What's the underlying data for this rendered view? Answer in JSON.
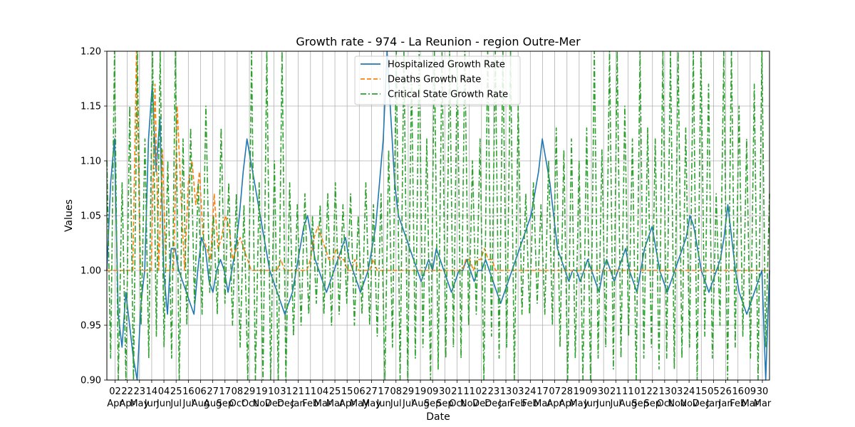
{
  "chart_data": {
    "type": "line",
    "title": "Growth rate - 974 - La Reunion - region Outre-Mer",
    "xlabel": "Date",
    "ylabel": "Values",
    "ylim": [
      0.9,
      1.2
    ],
    "yticks": [
      "0.90",
      "0.95",
      "1.00",
      "1.05",
      "1.10",
      "1.15",
      "1.20"
    ],
    "grid": true,
    "legend_position": "top-center",
    "x_tick_labels": [
      [
        "02",
        "Apr"
      ],
      [
        "22",
        "Apr"
      ],
      [
        "23",
        "May"
      ],
      [
        "14",
        "Jun"
      ],
      [
        "04",
        "Jun"
      ],
      [
        "25",
        "Jul"
      ],
      [
        "16",
        "Jul"
      ],
      [
        "06",
        "Aug"
      ],
      [
        "27",
        "Aug"
      ],
      [
        "17",
        "Sep"
      ],
      [
        "08",
        "Oct"
      ],
      [
        "29",
        "Oct"
      ],
      [
        "19",
        "Nov"
      ],
      [
        "10",
        "Dec"
      ],
      [
        "31",
        "Dec"
      ],
      [
        "21",
        "Jan"
      ],
      [
        "11",
        "Feb"
      ],
      [
        "04",
        "Mar"
      ],
      [
        "25",
        "Mar"
      ],
      [
        "15",
        "Apr"
      ],
      [
        "06",
        "May"
      ],
      [
        "27",
        "May"
      ],
      [
        "17",
        "Jun"
      ],
      [
        "08",
        "Jul"
      ],
      [
        "29",
        "Jul"
      ],
      [
        "19",
        "Aug"
      ],
      [
        "09",
        "Sep"
      ],
      [
        "30",
        "Sep"
      ],
      [
        "21",
        "Oct"
      ],
      [
        "11",
        "Nov"
      ],
      [
        "02",
        "Dec"
      ],
      [
        "23",
        "Dec"
      ],
      [
        "13",
        "Jan"
      ],
      [
        "03",
        "Feb"
      ],
      [
        "24",
        "Feb"
      ],
      [
        "17",
        "Mar"
      ],
      [
        "07",
        "Apr"
      ],
      [
        "28",
        "Apr"
      ],
      [
        "19",
        "May"
      ],
      [
        "09",
        "Jun"
      ],
      [
        "30",
        "Jun"
      ],
      [
        "21",
        "Jul"
      ],
      [
        "11",
        "Aug"
      ],
      [
        "01",
        "Sep"
      ],
      [
        "22",
        "Sep"
      ],
      [
        "13",
        "Oct"
      ],
      [
        "03",
        "Nov"
      ],
      [
        "24",
        "Nov"
      ],
      [
        "15",
        "Dec"
      ],
      [
        "05",
        "Jan"
      ],
      [
        "26",
        "Jan"
      ],
      [
        "16",
        "Feb"
      ],
      [
        "09",
        "Mar"
      ],
      [
        "30",
        "Mar"
      ]
    ],
    "series": [
      {
        "name": "Hospitalized Growth Rate",
        "color": "#1f77b4",
        "dash": "solid",
        "values": [
          1.0,
          1.08,
          1.12,
          0.96,
          0.93,
          0.98,
          0.95,
          0.92,
          0.89,
          0.97,
          1.0,
          1.12,
          1.17,
          1.09,
          1.14,
          1.0,
          0.96,
          1.02,
          1.02,
          1.0,
          0.99,
          0.98,
          0.97,
          0.96,
          1.0,
          1.03,
          1.02,
          0.99,
          0.98,
          1.0,
          1.01,
          1.0,
          0.98,
          1.0,
          1.02,
          1.05,
          1.09,
          1.12,
          1.1,
          1.08,
          1.06,
          1.04,
          1.02,
          1.0,
          0.99,
          0.98,
          0.97,
          0.96,
          0.97,
          0.98,
          1.0,
          1.02,
          1.04,
          1.05,
          1.03,
          1.01,
          1.0,
          0.99,
          0.98,
          0.99,
          1.0,
          1.01,
          1.02,
          1.03,
          1.01,
          1.0,
          0.99,
          0.98,
          0.99,
          1.0,
          1.02,
          1.04,
          1.08,
          1.12,
          1.2,
          1.14,
          1.08,
          1.05,
          1.04,
          1.03,
          1.02,
          1.01,
          1.0,
          0.99,
          1.0,
          1.01,
          1.0,
          1.02,
          1.01,
          1.0,
          0.99,
          0.98,
          0.99,
          1.0,
          1.0,
          1.01,
          1.0,
          0.99,
          1.0,
          1.0,
          1.01,
          1.0,
          0.99,
          0.98,
          0.97,
          0.98,
          0.99,
          1.0,
          1.01,
          1.02,
          1.03,
          1.04,
          1.05,
          1.07,
          1.09,
          1.12,
          1.1,
          1.08,
          1.05,
          1.02,
          1.01,
          1.0,
          0.99,
          1.0,
          1.0,
          0.99,
          1.0,
          1.01,
          1.0,
          0.99,
          0.98,
          1.0,
          1.01,
          1.0,
          0.99,
          1.0,
          1.01,
          1.02,
          1.0,
          0.99,
          0.98,
          1.0,
          1.02,
          1.03,
          1.04,
          1.02,
          1.0,
          0.99,
          0.98,
          0.99,
          1.0,
          1.01,
          1.02,
          1.03,
          1.05,
          1.04,
          1.02,
          1.0,
          0.99,
          0.98,
          0.99,
          1.0,
          1.01,
          1.03,
          1.06,
          1.03,
          1.0,
          0.98,
          0.97,
          0.96,
          0.97,
          0.98,
          0.99,
          1.0,
          0.9,
          1.0
        ]
      },
      {
        "name": "Deaths Growth Rate",
        "color": "#ff7f0e",
        "dash": "dashed",
        "values": [
          1.0,
          1.0,
          1.0,
          1.0,
          1.0,
          1.0,
          1.0,
          1.0,
          1.2,
          1.0,
          1.0,
          1.0,
          1.0,
          1.17,
          1.0,
          1.11,
          1.0,
          1.0,
          1.0,
          1.15,
          1.07,
          1.0,
          1.08,
          1.1,
          1.06,
          1.09,
          1.03,
          1.02,
          1.01,
          1.07,
          1.02,
          1.03,
          1.05,
          1.04,
          1.01,
          1.02,
          1.03,
          1.02,
          1.01,
          1.0,
          1.0,
          1.0,
          1.0,
          1.0,
          1.0,
          1.0,
          1.0,
          1.01,
          1.0,
          1.0,
          1.0,
          1.0,
          1.0,
          1.0,
          1.0,
          1.01,
          1.03,
          1.04,
          1.03,
          1.02,
          1.01,
          1.01,
          1.02,
          1.01,
          1.01,
          1.0,
          1.0,
          1.01,
          1.0,
          1.0,
          1.0,
          1.0,
          1.01,
          1.0,
          1.0,
          1.0,
          1.0,
          1.0,
          1.0,
          1.0,
          1.0,
          1.0,
          1.0,
          1.0,
          1.0,
          1.0,
          1.0,
          1.0,
          1.0,
          1.0,
          1.0,
          1.0,
          1.0,
          1.0,
          1.0,
          1.0,
          1.0,
          1.01,
          1.01,
          1.0,
          1.01,
          1.01,
          1.02,
          1.01,
          1.01,
          1.0,
          1.0,
          1.0,
          1.0,
          1.0,
          1.0,
          1.0,
          1.0,
          1.0,
          1.0,
          1.0,
          1.0,
          1.0,
          1.0,
          1.0,
          1.0,
          1.0,
          1.0,
          1.0,
          1.0,
          1.0,
          1.0,
          1.0,
          1.0,
          1.0,
          1.0,
          1.0,
          1.0,
          1.0,
          1.0,
          1.0,
          1.0,
          1.0,
          1.0,
          1.0,
          1.0,
          1.0,
          1.0,
          1.0,
          1.0,
          1.0,
          1.0,
          1.0,
          1.0,
          1.0,
          1.0,
          1.0,
          1.0,
          1.0,
          1.0,
          1.0,
          1.0,
          1.0,
          1.0,
          1.0,
          1.0,
          1.0,
          1.0,
          1.0,
          1.0,
          1.0,
          1.0,
          1.0,
          1.0,
          1.0,
          1.0,
          1.0,
          1.0,
          1.0,
          1.0,
          1.0,
          1.0,
          1.0,
          1.0,
          1.0
        ]
      },
      {
        "name": "Critical State Growth Rate",
        "color": "#2ca02c",
        "dash": "dashdot",
        "values": [
          1.1,
          0.92,
          1.2,
          0.9,
          1.08,
          0.9,
          1.15,
          0.9,
          1.2,
          0.95,
          1.12,
          0.92,
          1.2,
          0.94,
          1.2,
          0.93,
          1.1,
          0.92,
          1.2,
          0.9,
          1.12,
          0.95,
          1.13,
          0.97,
          1.08,
          0.96,
          1.15,
          0.98,
          1.05,
          0.96,
          1.13,
          0.97,
          1.08,
          0.95,
          1.07,
          0.93,
          1.06,
          0.9,
          1.2,
          0.9,
          1.08,
          0.9,
          1.2,
          0.9,
          1.1,
          0.9,
          1.2,
          0.9,
          1.08,
          0.94,
          1.06,
          0.95,
          1.07,
          0.96,
          1.05,
          0.97,
          1.06,
          0.96,
          1.07,
          0.95,
          1.08,
          0.96,
          1.06,
          0.97,
          1.07,
          0.95,
          1.05,
          0.96,
          1.08,
          0.95,
          1.06,
          0.94,
          1.07,
          0.9,
          1.11,
          0.93,
          1.2,
          0.9,
          1.2,
          0.9,
          1.18,
          0.92,
          1.2,
          0.93,
          1.12,
          0.9,
          1.2,
          0.91,
          1.2,
          0.92,
          1.2,
          0.93,
          1.19,
          0.92,
          1.2,
          0.95,
          1.1,
          0.96,
          1.12,
          0.9,
          1.2,
          0.94,
          1.2,
          0.92,
          1.2,
          0.93,
          1.2,
          0.9,
          1.15,
          0.96,
          1.07,
          0.96,
          1.08,
          0.97,
          1.06,
          0.96,
          1.1,
          0.95,
          1.13,
          0.93,
          1.11,
          0.9,
          1.12,
          0.92,
          1.1,
          0.9,
          1.13,
          0.9,
          1.2,
          0.92,
          1.11,
          0.93,
          1.2,
          0.91,
          1.2,
          0.92,
          1.15,
          0.94,
          1.12,
          0.9,
          1.2,
          0.92,
          1.13,
          0.93,
          1.12,
          0.91,
          1.2,
          0.92,
          1.2,
          0.91,
          1.2,
          0.92,
          1.13,
          0.93,
          1.2,
          0.9,
          1.2,
          0.94,
          1.17,
          0.92,
          1.07,
          0.95,
          1.2,
          0.9,
          1.2,
          0.93,
          1.15,
          0.94,
          1.12,
          0.92,
          1.17,
          0.9,
          1.2,
          0.93,
          1.07
        ]
      }
    ]
  }
}
